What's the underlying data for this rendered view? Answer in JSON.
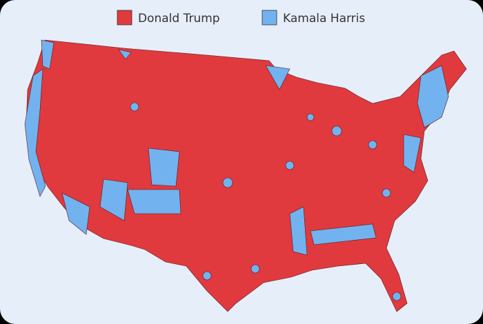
{
  "legend": [
    {
      "label": "Donald Trump",
      "color": "#e03a3e"
    },
    {
      "label": "Kamala Harris",
      "color": "#72b2ef"
    }
  ]
}
